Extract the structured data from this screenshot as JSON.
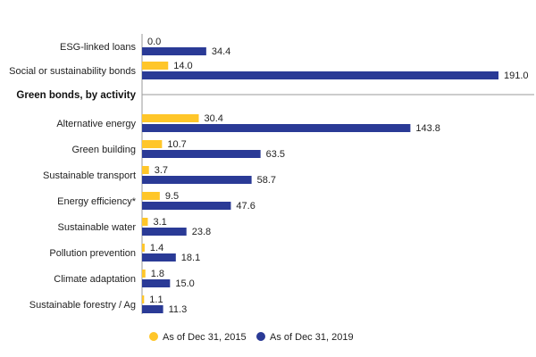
{
  "chart_data": {
    "type": "bar",
    "orientation": "horizontal",
    "categories": [
      "ESG-linked loans",
      "Social or sustainability bonds",
      "Alternative energy",
      "Green building",
      "Sustainable transport",
      "Energy efficiency*",
      "Sustainable water",
      "Pollution prevention",
      "Climate adaptation",
      "Sustainable forestry / Ag"
    ],
    "group_heading": "Green bonds, by activity",
    "series": [
      {
        "name": "As of Dec 31, 2015",
        "color": "#FFC629",
        "values": [
          0.0,
          14.0,
          30.4,
          10.7,
          3.7,
          9.5,
          3.1,
          1.4,
          1.8,
          1.1
        ],
        "labels": [
          "0.0",
          "14.0",
          "30.4",
          "10.7",
          "3.7",
          "9.5",
          "3.1",
          "1.4",
          "1.8",
          "1.1"
        ]
      },
      {
        "name": "As of Dec 31, 2019",
        "color": "#2A3A96",
        "values": [
          34.4,
          191.0,
          143.8,
          63.5,
          58.7,
          47.6,
          23.8,
          18.1,
          15.0,
          11.3
        ],
        "labels": [
          "34.4",
          "191.0",
          "143.8",
          "63.5",
          "58.7",
          "47.6",
          "23.8",
          "18.1",
          "15.0",
          "11.3"
        ]
      }
    ],
    "xlim": [
      0,
      191
    ],
    "grid": false,
    "legend_position": "bottom-center",
    "colors": {
      "axis": "#9a9a9a",
      "text": "#222222"
    }
  }
}
